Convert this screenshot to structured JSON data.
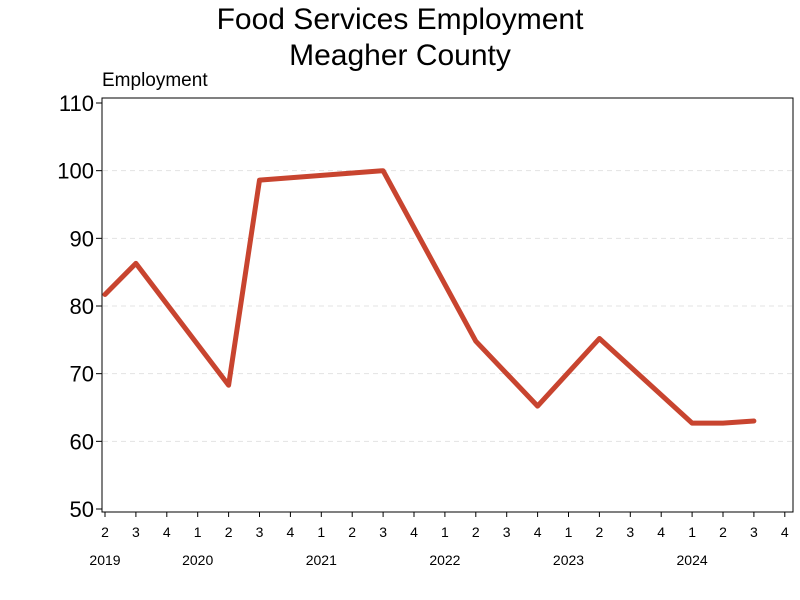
{
  "chart_data": {
    "type": "line",
    "title": "Food Services Employment",
    "subtitle": "Meagher County",
    "ylabel": "Employment",
    "ylim": [
      50,
      110
    ],
    "yticks": [
      50,
      60,
      70,
      80,
      90,
      100,
      110
    ],
    "grid": true,
    "quarter_ticks": [
      "2",
      "3",
      "4",
      "1",
      "2",
      "3",
      "4",
      "1",
      "2",
      "3",
      "4",
      "1",
      "2",
      "3",
      "4",
      "1",
      "2",
      "3",
      "4",
      "1",
      "2",
      "3",
      "4"
    ],
    "years": [
      {
        "label": "2019",
        "under_tick": 0
      },
      {
        "label": "2020",
        "under_tick": 3
      },
      {
        "label": "2021",
        "under_tick": 7
      },
      {
        "label": "2022",
        "under_tick": 11
      },
      {
        "label": "2023",
        "under_tick": 15
      },
      {
        "label": "2024",
        "under_tick": 19
      }
    ],
    "series": [
      {
        "color": "#c8442f",
        "points": [
          {
            "x": "2019 Q2",
            "y": 81.7
          },
          {
            "x": "2019 Q3",
            "y": 86.3
          },
          {
            "x": "2020 Q2",
            "y": 68.3
          },
          {
            "x": "2020 Q3",
            "y": 98.6
          },
          {
            "x": "2021 Q3",
            "y": 100.0
          },
          {
            "x": "2022 Q2",
            "y": 74.8
          },
          {
            "x": "2022 Q4",
            "y": 65.2
          },
          {
            "x": "2023 Q2",
            "y": 75.2
          },
          {
            "x": "2024 Q1",
            "y": 62.7
          },
          {
            "x": "2024 Q2",
            "y": 62.7
          },
          {
            "x": "2024 Q3",
            "y": 63.0
          }
        ]
      }
    ]
  }
}
